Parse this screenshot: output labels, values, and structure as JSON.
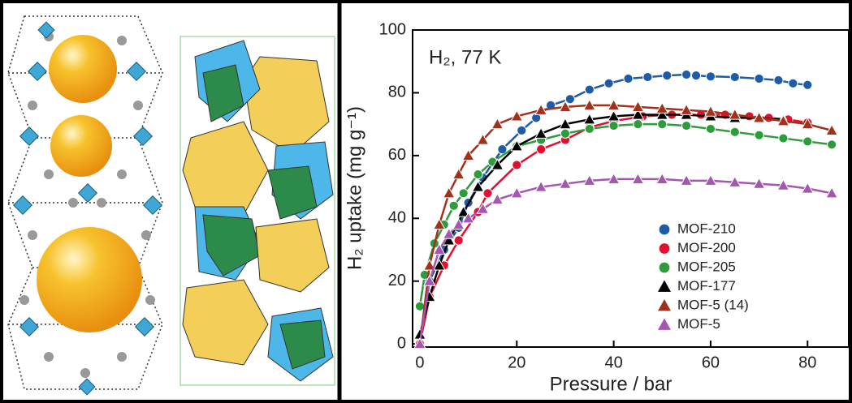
{
  "chart_data": {
    "type": "line",
    "annotation": "H₂, 77 K",
    "x_label": "Pressure / bar",
    "y_label": "H₂ uptake (mg g⁻¹)",
    "xlim": [
      -1.5,
      88.5
    ],
    "ylim": [
      -1,
      100
    ],
    "xticks": [
      0,
      20,
      40,
      60,
      80
    ],
    "yticks": [
      0,
      20,
      40,
      60,
      80,
      100
    ],
    "legend": "lower right",
    "series": [
      {
        "name": "MOF-210",
        "color": "#1f5ca6",
        "marker": "circle",
        "x": [
          0,
          2,
          5,
          8,
          10,
          13,
          17,
          21,
          24,
          27,
          31,
          35,
          39,
          43,
          47,
          51,
          55,
          57,
          60,
          65,
          70,
          74,
          77,
          80
        ],
        "values": [
          0,
          20,
          30,
          37,
          45,
          53,
          62,
          68,
          72,
          76,
          78,
          81,
          83,
          84.5,
          85,
          85.5,
          85.8,
          85.5,
          85.2,
          85,
          84.5,
          84,
          83,
          82.5
        ]
      },
      {
        "name": "MOF-200",
        "color": "#e0102e",
        "marker": "circle",
        "x": [
          0,
          2,
          5,
          8,
          12,
          14,
          20,
          25,
          30,
          35,
          40,
          46,
          52,
          58,
          63,
          68,
          72,
          76,
          80
        ],
        "values": [
          0,
          15,
          25,
          33,
          42,
          48,
          57,
          62,
          65,
          69,
          71,
          72.5,
          73,
          73,
          73,
          72.5,
          72,
          71.5,
          70.5
        ]
      },
      {
        "name": "MOF-205",
        "color": "#2e9b3c",
        "marker": "circle",
        "x": [
          0,
          1,
          3,
          5,
          7,
          9,
          12,
          15,
          20,
          25,
          30,
          35,
          40,
          45,
          50,
          55,
          60,
          65,
          70,
          75,
          80,
          85
        ],
        "values": [
          12,
          22,
          32,
          38,
          44,
          48,
          54,
          58,
          63,
          65,
          67,
          68.5,
          69.5,
          70,
          70,
          69.5,
          68.5,
          67.5,
          66.5,
          65.5,
          64.5,
          63.5
        ]
      },
      {
        "name": "MOF-177",
        "color": "#000000",
        "marker": "triangle",
        "x": [
          0,
          2,
          4,
          6,
          9,
          12,
          16,
          20,
          25,
          30,
          35,
          40,
          45,
          50,
          55,
          60,
          65,
          70,
          75
        ],
        "values": [
          3,
          15,
          25,
          33,
          42,
          50,
          57,
          63,
          67,
          70,
          71.5,
          72.5,
          73,
          73,
          73,
          72.5,
          72,
          72,
          71.5
        ]
      },
      {
        "name": "MOF-5 (14)",
        "color": "#a0321b",
        "marker": "triangle",
        "x": [
          0,
          2,
          4,
          6,
          8,
          10,
          13,
          16,
          20,
          25,
          30,
          35,
          40,
          45,
          50,
          55,
          60,
          65,
          70,
          75,
          80,
          85
        ],
        "values": [
          0,
          25,
          38,
          48,
          54,
          60,
          65,
          70,
          72.5,
          74.5,
          75.5,
          76,
          76,
          75.5,
          75,
          74.5,
          74,
          73,
          72,
          71,
          70,
          68
        ]
      },
      {
        "name": "MOF-5",
        "color": "#a456b0",
        "marker": "triangle",
        "x": [
          0,
          2,
          4,
          6,
          8,
          10,
          13,
          16,
          20,
          25,
          30,
          35,
          40,
          45,
          50,
          55,
          60,
          65,
          70,
          75,
          80,
          85
        ],
        "values": [
          0,
          20,
          30,
          35,
          38,
          40,
          43,
          46,
          48,
          50,
          51,
          52,
          52.5,
          52.5,
          52.5,
          52,
          52,
          51.5,
          51,
          50.5,
          49.5,
          48
        ]
      }
    ]
  }
}
